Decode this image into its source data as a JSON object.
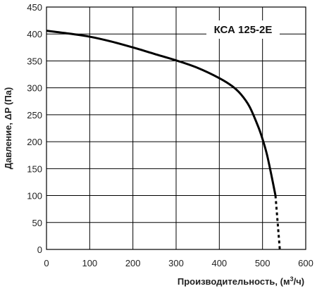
{
  "chart_data": {
    "type": "line",
    "title": "КСА 125-2Е",
    "xlabel": "Производительность, (м",
    "xlabel_sup": "3",
    "xlabel_end": "/ч)",
    "ylabel": "Давление, ΔP (Па)",
    "xlim": [
      0,
      600
    ],
    "ylim": [
      0,
      450
    ],
    "xticks": [
      0,
      100,
      200,
      300,
      400,
      500,
      600
    ],
    "yticks": [
      0,
      50,
      100,
      150,
      200,
      250,
      300,
      350,
      400,
      450
    ],
    "grid": true,
    "colors": {
      "line": "#000000",
      "grid": "#000000",
      "background": "#ffffff"
    },
    "series": [
      {
        "style": "solid",
        "x": [
          0,
          50,
          100,
          150,
          200,
          250,
          300,
          350,
          400,
          430,
          450,
          470,
          490,
          500,
          510,
          520,
          530
        ],
        "y": [
          406,
          401,
          395,
          386,
          375,
          363,
          351,
          337,
          318,
          303,
          288,
          265,
          228,
          205,
          177,
          140,
          100
        ]
      },
      {
        "style": "dotted",
        "x": [
          530,
          535,
          540
        ],
        "y": [
          100,
          50,
          0
        ]
      }
    ]
  }
}
